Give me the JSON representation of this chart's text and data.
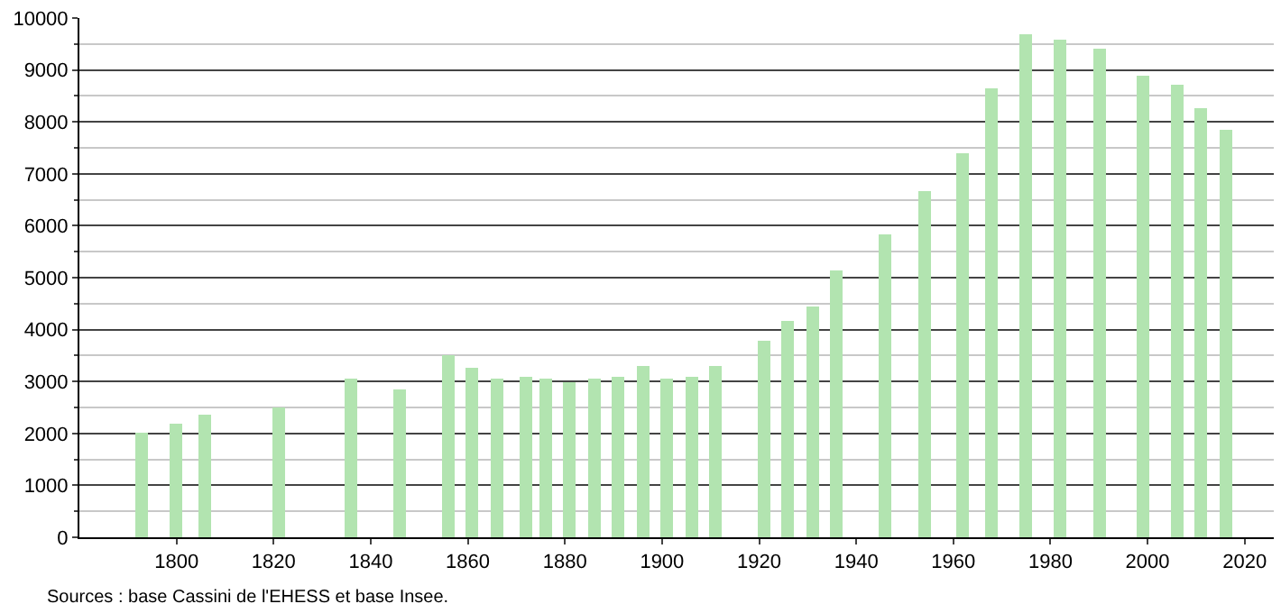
{
  "chart_data": {
    "type": "bar",
    "x": [
      1793,
      1800,
      1806,
      1821,
      1836,
      1846,
      1856,
      1861,
      1866,
      1872,
      1876,
      1881,
      1886,
      1891,
      1896,
      1901,
      1906,
      1911,
      1921,
      1926,
      1931,
      1936,
      1946,
      1954,
      1962,
      1968,
      1975,
      1982,
      1990,
      1999,
      2006,
      2011,
      2016
    ],
    "series": [
      {
        "color": "#b2e4b0",
        "values": [
          2000,
          2200,
          2350,
          2500,
          3050,
          2850,
          3500,
          3250,
          3050,
          3100,
          3050,
          3000,
          3050,
          3100,
          3300,
          3050,
          3100,
          3300,
          3800,
          4150,
          4450,
          5150,
          5850,
          6650,
          7400,
          8650,
          9700,
          9600,
          9400,
          8900,
          8700,
          8250,
          7850
        ]
      }
    ],
    "xlim": [
      1780,
      2026
    ],
    "xticks": [
      1800,
      1820,
      1840,
      1860,
      1880,
      1900,
      1920,
      1940,
      1960,
      1980,
      2000,
      2020
    ],
    "ylim": [
      0,
      10000
    ],
    "yticks": [
      0,
      1000,
      2000,
      3000,
      4000,
      5000,
      6000,
      7000,
      8000,
      9000,
      10000
    ],
    "grid": "y",
    "legend": false,
    "annotations": [
      "Sources : base Cassini de l'EHESS et base Insee."
    ]
  }
}
